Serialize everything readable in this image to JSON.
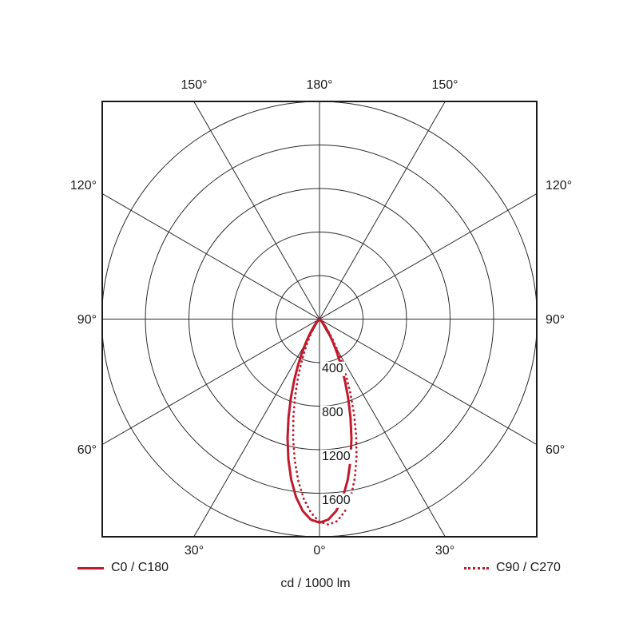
{
  "chart_data": {
    "type": "line",
    "subtype": "polar-photometric-distribution",
    "units_label": "cd / 1000 lm",
    "rmax": 2000,
    "ring_step": 400,
    "ring_values": [
      400,
      800,
      1200,
      1600,
      2000
    ],
    "ring_tick_labels": [
      "400",
      "800",
      "1200",
      "1600"
    ],
    "spoke_angles_deg": [
      0,
      30,
      60,
      90,
      120,
      150
    ],
    "angle_labels": {
      "top": [
        "150°",
        "180°",
        "150°"
      ],
      "left": [
        "120°",
        "90°",
        "60°"
      ],
      "right": [
        "120°",
        "90°",
        "60°"
      ],
      "bottom": [
        "30°",
        "0°",
        "30°"
      ]
    },
    "legend": [
      {
        "label": "C0 / C180",
        "style": "solid",
        "color": "#c01a2c"
      },
      {
        "label": "C90 / C270",
        "style": "dotted",
        "color": "#c01a2c"
      }
    ],
    "colors": {
      "curve": "#c01a2c",
      "grid": "#2b2b2b",
      "text": "#1a1a1a",
      "background": "#ffffff"
    },
    "gamma_deg": [
      -90,
      -80,
      -70,
      -65,
      -60,
      -57.5,
      -55,
      -52.5,
      -50,
      -47.5,
      -45,
      -42.5,
      -40,
      -37.5,
      -35,
      -32.5,
      -30,
      -27.5,
      -25,
      -22.5,
      -20,
      -17.5,
      -15,
      -12.5,
      -10,
      -7.5,
      -5,
      -2.5,
      0,
      2.5,
      5,
      7.5,
      10,
      12.5,
      15,
      17.5,
      20,
      22.5,
      25,
      27.5,
      30,
      32.5,
      35,
      37.5,
      40,
      42.5,
      45,
      47.5,
      50,
      52.5,
      55,
      57.5,
      60,
      65,
      70,
      80,
      90
    ],
    "series": [
      {
        "name": "C0 / C180",
        "style": "solid",
        "values_cd_per_1000lm": [
          0,
          0,
          0,
          0,
          1,
          1,
          2,
          4,
          7,
          12,
          21,
          34,
          53,
          82,
          123,
          179,
          253,
          348,
          466,
          607,
          769,
          947,
          1134,
          1321,
          1497,
          1650,
          1769,
          1844,
          1870,
          1844,
          1769,
          1650,
          1497,
          1321,
          1134,
          947,
          769,
          607,
          466,
          348,
          253,
          179,
          123,
          82,
          53,
          34,
          21,
          12,
          7,
          4,
          2,
          1,
          1,
          0,
          0,
          0,
          0
        ]
      },
      {
        "name": "C90 / C270",
        "style": "dotted",
        "values_cd_per_1000lm": [
          0,
          0,
          0,
          0,
          0,
          0,
          1,
          2,
          3,
          6,
          10,
          17,
          28,
          46,
          72,
          109,
          162,
          233,
          326,
          442,
          582,
          746,
          927,
          1120,
          1314,
          1498,
          1658,
          1783,
          1863,
          1890,
          1863,
          1783,
          1658,
          1498,
          1314,
          1120,
          927,
          746,
          582,
          442,
          326,
          233,
          162,
          109,
          72,
          46,
          28,
          17,
          10,
          6,
          3,
          2,
          1,
          0,
          0,
          0,
          0
        ]
      }
    ]
  }
}
